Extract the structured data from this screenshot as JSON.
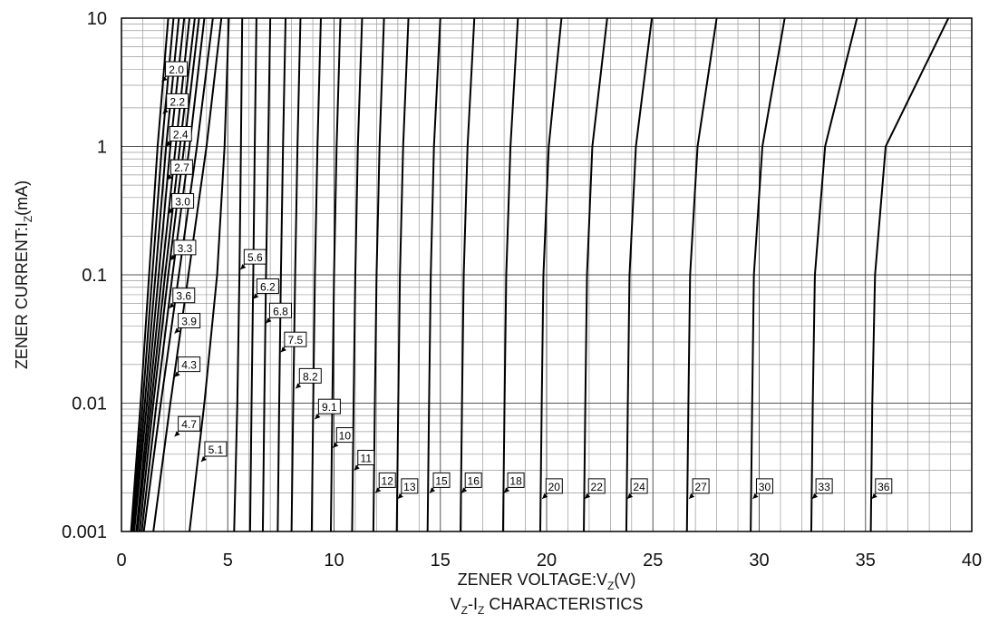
{
  "chart_data": {
    "type": "line",
    "title": "VZ-IZ CHARACTERISTICS",
    "xlabel": "ZENER VOLTAGE:VZ(V)",
    "ylabel": "ZENER CURRENT:IZ(mA)",
    "x_scale": "linear",
    "y_scale": "log",
    "xlim": [
      0,
      40
    ],
    "ylim": [
      0.001,
      10
    ],
    "grid": true,
    "x_ticks": [
      "0",
      "5",
      "10",
      "15",
      "20",
      "25",
      "30",
      "35",
      "40"
    ],
    "y_ticks": [
      "0.001",
      "0.01",
      "0.1",
      "1",
      "10"
    ],
    "series": [
      {
        "name": "2.0",
        "points": [
          [
            0.45,
            0.001
          ],
          [
            0.9,
            0.01
          ],
          [
            1.3,
            0.1
          ],
          [
            1.7,
            1
          ],
          [
            2.2,
            10
          ]
        ]
      },
      {
        "name": "2.2",
        "points": [
          [
            0.5,
            0.001
          ],
          [
            1.0,
            0.01
          ],
          [
            1.45,
            0.1
          ],
          [
            1.9,
            1
          ],
          [
            2.45,
            10
          ]
        ]
      },
      {
        "name": "2.4",
        "points": [
          [
            0.55,
            0.001
          ],
          [
            1.1,
            0.01
          ],
          [
            1.6,
            0.1
          ],
          [
            2.1,
            1
          ],
          [
            2.7,
            10
          ]
        ]
      },
      {
        "name": "2.7",
        "points": [
          [
            0.6,
            0.001
          ],
          [
            1.2,
            0.01
          ],
          [
            1.75,
            0.1
          ],
          [
            2.3,
            1
          ],
          [
            2.95,
            10
          ]
        ]
      },
      {
        "name": "3.0",
        "points": [
          [
            0.7,
            0.001
          ],
          [
            1.3,
            0.01
          ],
          [
            1.9,
            0.1
          ],
          [
            2.55,
            1
          ],
          [
            3.2,
            10
          ]
        ]
      },
      {
        "name": "3.3",
        "points": [
          [
            0.75,
            0.001
          ],
          [
            1.4,
            0.01
          ],
          [
            2.05,
            0.1
          ],
          [
            2.75,
            1
          ],
          [
            3.45,
            10
          ]
        ]
      },
      {
        "name": "3.6",
        "points": [
          [
            0.85,
            0.001
          ],
          [
            1.5,
            0.01
          ],
          [
            2.2,
            0.1
          ],
          [
            2.95,
            1
          ],
          [
            3.65,
            10
          ]
        ]
      },
      {
        "name": "3.9",
        "points": [
          [
            0.95,
            0.001
          ],
          [
            1.65,
            0.01
          ],
          [
            2.4,
            0.1
          ],
          [
            3.2,
            1
          ],
          [
            3.9,
            10
          ]
        ]
      },
      {
        "name": "4.3",
        "points": [
          [
            1.05,
            0.001
          ],
          [
            1.85,
            0.01
          ],
          [
            2.7,
            0.1
          ],
          [
            3.55,
            1
          ],
          [
            4.3,
            10
          ]
        ]
      },
      {
        "name": "4.7",
        "points": [
          [
            1.5,
            0.001
          ],
          [
            2.3,
            0.01
          ],
          [
            3.15,
            0.1
          ],
          [
            4.0,
            1
          ],
          [
            4.7,
            10
          ]
        ]
      },
      {
        "name": "5.1",
        "points": [
          [
            3.2,
            0.001
          ],
          [
            3.9,
            0.01
          ],
          [
            4.5,
            0.1
          ],
          [
            4.85,
            1
          ],
          [
            5.05,
            10
          ]
        ]
      },
      {
        "name": "5.6",
        "points": [
          [
            5.3,
            0.001
          ],
          [
            5.45,
            0.01
          ],
          [
            5.55,
            0.1
          ],
          [
            5.62,
            1
          ],
          [
            5.68,
            10
          ]
        ]
      },
      {
        "name": "6.2",
        "points": [
          [
            6.05,
            0.001
          ],
          [
            6.12,
            0.01
          ],
          [
            6.2,
            0.1
          ],
          [
            6.27,
            1
          ],
          [
            6.35,
            10
          ]
        ]
      },
      {
        "name": "6.8",
        "points": [
          [
            6.65,
            0.001
          ],
          [
            6.72,
            0.01
          ],
          [
            6.8,
            0.1
          ],
          [
            6.9,
            1
          ],
          [
            7.0,
            10
          ]
        ]
      },
      {
        "name": "7.5",
        "points": [
          [
            7.35,
            0.001
          ],
          [
            7.42,
            0.01
          ],
          [
            7.5,
            0.1
          ],
          [
            7.6,
            1
          ],
          [
            7.72,
            10
          ]
        ]
      },
      {
        "name": "8.2",
        "points": [
          [
            8.0,
            0.001
          ],
          [
            8.08,
            0.01
          ],
          [
            8.17,
            0.1
          ],
          [
            8.28,
            1
          ],
          [
            8.42,
            10
          ]
        ]
      },
      {
        "name": "9.1",
        "points": [
          [
            8.95,
            0.001
          ],
          [
            9.02,
            0.01
          ],
          [
            9.1,
            0.1
          ],
          [
            9.22,
            1
          ],
          [
            9.38,
            10
          ]
        ]
      },
      {
        "name": "10",
        "points": [
          [
            9.85,
            0.001
          ],
          [
            9.92,
            0.01
          ],
          [
            10.0,
            0.1
          ],
          [
            10.12,
            1
          ],
          [
            10.3,
            10
          ]
        ]
      },
      {
        "name": "11",
        "points": [
          [
            10.85,
            0.001
          ],
          [
            10.92,
            0.01
          ],
          [
            11.0,
            0.1
          ],
          [
            11.12,
            1
          ],
          [
            11.32,
            10
          ]
        ]
      },
      {
        "name": "12",
        "points": [
          [
            11.85,
            0.001
          ],
          [
            11.92,
            0.01
          ],
          [
            12.0,
            0.1
          ],
          [
            12.14,
            1
          ],
          [
            12.35,
            10
          ]
        ]
      },
      {
        "name": "13",
        "points": [
          [
            12.95,
            0.001
          ],
          [
            13.02,
            0.01
          ],
          [
            13.1,
            0.1
          ],
          [
            13.25,
            1
          ],
          [
            13.5,
            10
          ]
        ]
      },
      {
        "name": "15",
        "points": [
          [
            14.4,
            0.001
          ],
          [
            14.47,
            0.01
          ],
          [
            14.55,
            0.1
          ],
          [
            14.7,
            1
          ],
          [
            15.0,
            10
          ]
        ]
      },
      {
        "name": "16",
        "points": [
          [
            15.95,
            0.001
          ],
          [
            16.02,
            0.01
          ],
          [
            16.1,
            0.1
          ],
          [
            16.28,
            1
          ],
          [
            16.6,
            10
          ]
        ]
      },
      {
        "name": "18",
        "points": [
          [
            17.95,
            0.001
          ],
          [
            18.02,
            0.01
          ],
          [
            18.1,
            0.1
          ],
          [
            18.3,
            1
          ],
          [
            18.65,
            10
          ]
        ]
      },
      {
        "name": "20",
        "points": [
          [
            19.7,
            0.001
          ],
          [
            19.77,
            0.01
          ],
          [
            19.85,
            0.1
          ],
          [
            20.1,
            1
          ],
          [
            20.7,
            10
          ]
        ]
      },
      {
        "name": "22",
        "points": [
          [
            21.75,
            0.001
          ],
          [
            21.82,
            0.01
          ],
          [
            21.9,
            0.1
          ],
          [
            22.15,
            1
          ],
          [
            22.85,
            10
          ]
        ]
      },
      {
        "name": "24",
        "points": [
          [
            23.75,
            0.001
          ],
          [
            23.82,
            0.01
          ],
          [
            23.9,
            0.1
          ],
          [
            24.2,
            1
          ],
          [
            24.95,
            10
          ]
        ]
      },
      {
        "name": "27",
        "points": [
          [
            26.6,
            0.001
          ],
          [
            26.67,
            0.01
          ],
          [
            26.75,
            0.1
          ],
          [
            27.1,
            1
          ],
          [
            28.0,
            10
          ]
        ]
      },
      {
        "name": "30",
        "points": [
          [
            29.6,
            0.001
          ],
          [
            29.67,
            0.01
          ],
          [
            29.75,
            0.1
          ],
          [
            30.15,
            1
          ],
          [
            31.2,
            10
          ]
        ]
      },
      {
        "name": "33",
        "points": [
          [
            32.45,
            0.001
          ],
          [
            32.52,
            0.01
          ],
          [
            32.62,
            0.1
          ],
          [
            33.1,
            1
          ],
          [
            34.6,
            10
          ]
        ]
      },
      {
        "name": "36",
        "points": [
          [
            35.25,
            0.001
          ],
          [
            35.32,
            0.01
          ],
          [
            35.45,
            0.1
          ],
          [
            35.95,
            1
          ],
          [
            38.9,
            10
          ]
        ]
      }
    ],
    "annotations": [
      {
        "text": "2.0",
        "x": 1.9,
        "y": 3.2
      },
      {
        "text": "2.2",
        "x": 1.95,
        "y": 1.8
      },
      {
        "text": "2.4",
        "x": 2.1,
        "y": 1.0
      },
      {
        "text": "2.7",
        "x": 2.15,
        "y": 0.55
      },
      {
        "text": "3.0",
        "x": 2.2,
        "y": 0.3
      },
      {
        "text": "3.3",
        "x": 2.3,
        "y": 0.13
      },
      {
        "text": "3.6",
        "x": 2.25,
        "y": 0.055
      },
      {
        "text": "3.9",
        "x": 2.5,
        "y": 0.035
      },
      {
        "text": "4.3",
        "x": 2.5,
        "y": 0.016
      },
      {
        "text": "4.7",
        "x": 2.5,
        "y": 0.0055
      },
      {
        "text": "5.1",
        "x": 3.75,
        "y": 0.0035
      },
      {
        "text": "5.6",
        "x": 5.6,
        "y": 0.11
      },
      {
        "text": "6.2",
        "x": 6.2,
        "y": 0.065
      },
      {
        "text": "6.8",
        "x": 6.8,
        "y": 0.042
      },
      {
        "text": "7.5",
        "x": 7.5,
        "y": 0.025
      },
      {
        "text": "8.2",
        "x": 8.2,
        "y": 0.013
      },
      {
        "text": "9.1",
        "x": 9.1,
        "y": 0.0075
      },
      {
        "text": "10",
        "x": 9.95,
        "y": 0.0045
      },
      {
        "text": "11",
        "x": 10.95,
        "y": 0.003
      },
      {
        "text": "12",
        "x": 11.95,
        "y": 0.002
      },
      {
        "text": "13",
        "x": 13.0,
        "y": 0.0018
      },
      {
        "text": "15",
        "x": 14.5,
        "y": 0.002
      },
      {
        "text": "16",
        "x": 16.0,
        "y": 0.002
      },
      {
        "text": "18",
        "x": 18.0,
        "y": 0.002
      },
      {
        "text": "20",
        "x": 19.8,
        "y": 0.0018
      },
      {
        "text": "22",
        "x": 21.8,
        "y": 0.0018
      },
      {
        "text": "24",
        "x": 23.8,
        "y": 0.0018
      },
      {
        "text": "27",
        "x": 26.7,
        "y": 0.0018
      },
      {
        "text": "30",
        "x": 29.7,
        "y": 0.0018
      },
      {
        "text": "33",
        "x": 32.5,
        "y": 0.0018
      },
      {
        "text": "36",
        "x": 35.3,
        "y": 0.0018
      }
    ]
  },
  "labels": {
    "x_axis_main": "ZENER VOLTAGE:V",
    "x_axis_sub": "Z",
    "x_axis_unit": "(V)",
    "y_axis_main": "ZENER CURRENT:I",
    "y_axis_sub": "Z",
    "y_axis_unit": "(mA)",
    "title_v": "V",
    "title_sub1": "Z",
    "title_dash_i": "-I",
    "title_sub2": "Z",
    "title_rest": " CHARACTERISTICS"
  }
}
